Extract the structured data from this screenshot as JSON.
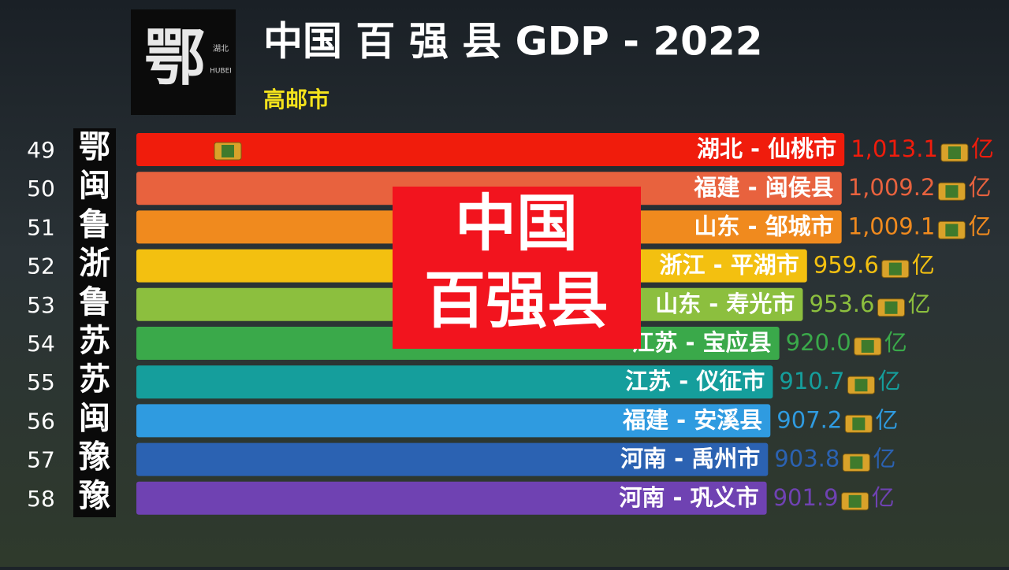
{
  "chart_data": {
    "type": "bar",
    "orientation": "horizontal",
    "title": "中国 百 强 县 GDP - 2022",
    "subtitle": "高邮市",
    "unit": "亿",
    "ranks": [
      49,
      50,
      51,
      52,
      53,
      54,
      55,
      56,
      57,
      58
    ],
    "provinces": [
      "鄂",
      "闽",
      "鲁",
      "浙",
      "鲁",
      "苏",
      "苏",
      "闽",
      "豫",
      "豫"
    ],
    "categories": [
      "湖北 - 仙桃市",
      "福建 - 闽侯县",
      "山东 - 邹城市",
      "浙江 - 平湖市",
      "山东 - 寿光市",
      "江苏 - 宝应县",
      "江苏 - 仪征市",
      "福建 - 安溪县",
      "河南 - 禹州市",
      "河南 - 巩义市"
    ],
    "values": [
      1013.1,
      1009.2,
      1009.1,
      959.6,
      953.6,
      920.0,
      910.7,
      907.2,
      903.8,
      901.9
    ],
    "value_labels": [
      "1,013.1",
      "1,009.2",
      "1,009.1",
      "959.6",
      "953.6",
      "920.0",
      "910.7",
      "907.2",
      "903.8",
      "901.9"
    ],
    "colors": [
      "#f01c0c",
      "#e8623e",
      "#f08a1e",
      "#f3c010",
      "#8cbf3e",
      "#3aa94a",
      "#159e9c",
      "#2f9be0",
      "#2b62b2",
      "#6f42b2"
    ],
    "xlim": [
      0,
      1014
    ]
  },
  "logo": {
    "char": "鄂",
    "region": "湖北",
    "latin": "HUBEI"
  },
  "overlay": [
    "中国",
    "百强县"
  ]
}
